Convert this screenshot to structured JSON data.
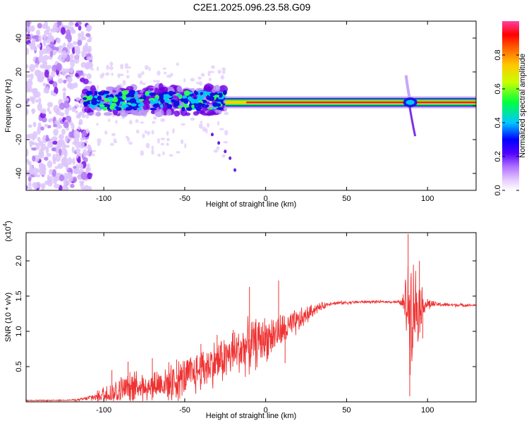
{
  "title": "C2E1.2025.096.23.58.G09",
  "chart_data": [
    {
      "type": "heatmap",
      "xlabel": "Height of straight line (km)",
      "ylabel": "Frequency (Hz)",
      "xlim": [
        -148,
        130
      ],
      "ylim": [
        -50,
        50
      ],
      "xticks": [
        -100,
        -50,
        0,
        50,
        100
      ],
      "xtick_labels": [
        "-100",
        "-50",
        "0",
        "50",
        "100"
      ],
      "yticks": [
        -40,
        -20,
        0,
        20,
        40
      ],
      "ytick_labels": [
        "-40",
        "-20",
        "0",
        "20",
        "40"
      ],
      "colorbar": {
        "label": "Normalized spectral amplitude",
        "range": [
          0,
          1
        ],
        "ticks": [
          0.0,
          0.2,
          0.4,
          0.6,
          0.8
        ],
        "tick_labels": [
          "0.0",
          "0.2",
          "0.4",
          "0.6",
          "0.8"
        ],
        "colors": [
          "#ffffff",
          "#d9b3ff",
          "#8a2be2",
          "#0000ff",
          "#00c8ff",
          "#00ff40",
          "#ffff00",
          "#ff8000",
          "#ff0000",
          "#ff40a0"
        ]
      },
      "features": {
        "carrier_frequency_hz": 2,
        "carrier_band_x_range": [
          -25,
          130
        ],
        "noisy_band_x_range": [
          -112,
          -25
        ],
        "scatter_noise_x_range": [
          -148,
          -112
        ],
        "anomaly_x": 88
      }
    },
    {
      "type": "line",
      "xlabel": "Height of straight line (km)",
      "ylabel": "SNR (10 * v/v)",
      "y_scale_label": "(x10",
      "y_scale_exponent": "4",
      "xlim": [
        -148,
        130
      ],
      "ylim": [
        0,
        2.4
      ],
      "xticks": [
        -100,
        -50,
        0,
        50,
        100
      ],
      "xtick_labels": [
        "-100",
        "-50",
        "0",
        "50",
        "100"
      ],
      "yticks": [
        0.5,
        1.0,
        1.5,
        2.0
      ],
      "ytick_labels": [
        "0.5",
        "1.0",
        "1.5",
        "2.0"
      ],
      "series": [
        {
          "color": "#ee3333",
          "envelope_points": [
            [
              -148,
              0.02
            ],
            [
              -130,
              0.02
            ],
            [
              -115,
              0.03
            ],
            [
              -105,
              0.08
            ],
            [
              -95,
              0.15
            ],
            [
              -85,
              0.22
            ],
            [
              -75,
              0.25
            ],
            [
              -65,
              0.28
            ],
            [
              -55,
              0.32
            ],
            [
              -45,
              0.42
            ],
            [
              -35,
              0.55
            ],
            [
              -25,
              0.65
            ],
            [
              -15,
              0.78
            ],
            [
              -5,
              0.88
            ],
            [
              5,
              0.98
            ],
            [
              15,
              1.08
            ],
            [
              22,
              1.18
            ],
            [
              30,
              1.32
            ],
            [
              40,
              1.4
            ],
            [
              60,
              1.42
            ],
            [
              80,
              1.42
            ],
            [
              86,
              1.4
            ],
            [
              88,
              1.45
            ],
            [
              92,
              1.42
            ],
            [
              96,
              1.4
            ],
            [
              110,
              1.38
            ],
            [
              130,
              1.37
            ]
          ],
          "noise_amplitude": [
            [
              -148,
              0.01
            ],
            [
              -120,
              0.01
            ],
            [
              -110,
              0.04
            ],
            [
              -95,
              0.22
            ],
            [
              -80,
              0.28
            ],
            [
              -65,
              0.3
            ],
            [
              -50,
              0.35
            ],
            [
              -35,
              0.38
            ],
            [
              -20,
              0.4
            ],
            [
              -10,
              0.45
            ],
            [
              0,
              0.38
            ],
            [
              10,
              0.3
            ],
            [
              20,
              0.22
            ],
            [
              30,
              0.1
            ],
            [
              40,
              0.03
            ],
            [
              80,
              0.02
            ],
            [
              84,
              0.05
            ],
            [
              87,
              0.6
            ],
            [
              89,
              1.0
            ],
            [
              92,
              0.8
            ],
            [
              95,
              0.5
            ],
            [
              98,
              0.15
            ],
            [
              105,
              0.04
            ],
            [
              130,
              0.02
            ]
          ],
          "peaks": [
            [
              -95,
              0.45
            ],
            [
              -85,
              0.57
            ],
            [
              -70,
              0.62
            ],
            [
              -55,
              0.6
            ],
            [
              -40,
              0.82
            ],
            [
              -30,
              0.95
            ],
            [
              -20,
              1.02
            ],
            [
              -10,
              1.63
            ],
            [
              8,
              1.72
            ],
            [
              12,
              0.55
            ],
            [
              88,
              2.38
            ],
            [
              89,
              0.08
            ],
            [
              95,
              2.0
            ],
            [
              97,
              0.9
            ]
          ]
        }
      ]
    }
  ]
}
